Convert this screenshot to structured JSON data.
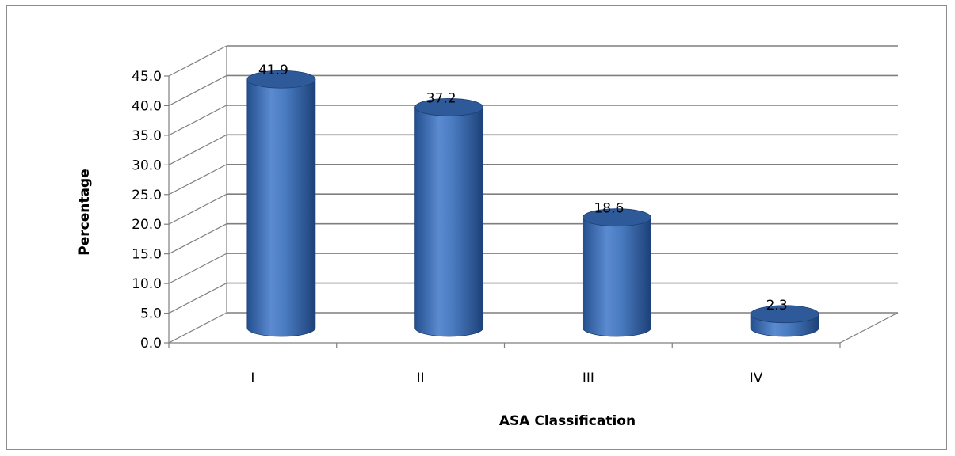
{
  "chart_data": {
    "type": "bar",
    "categories": [
      "I",
      "II",
      "III",
      "IV"
    ],
    "values": [
      41.9,
      37.2,
      18.6,
      2.3
    ],
    "data_labels": [
      "41.9",
      "37.2",
      "18.6",
      "2.3"
    ],
    "title": "",
    "xlabel": "ASA  Classification",
    "ylabel": "Percentage",
    "ylim": [
      0,
      45
    ],
    "y_ticks": [
      "0.0",
      "5.0",
      "10.0",
      "15.0",
      "20.0",
      "25.0",
      "30.0",
      "35.0",
      "40.0",
      "45.0"
    ],
    "grid": true,
    "style": "3d-cylinder",
    "bar_color": "#3d6fb8",
    "bar_light": "#6f9ad6",
    "bar_dark": "#1f4680",
    "bar_top": "#2f5a99"
  }
}
